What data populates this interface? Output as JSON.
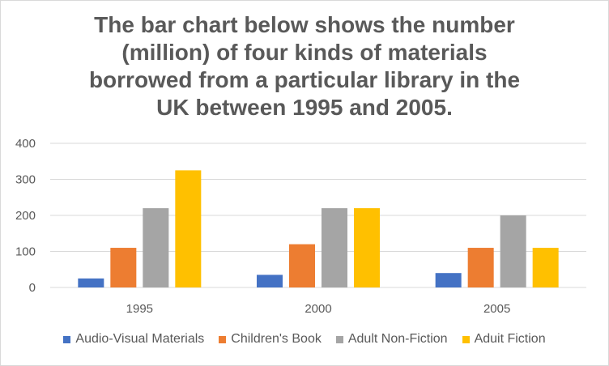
{
  "chart_data": {
    "type": "bar",
    "title_lines": [
      "The bar chart below shows the number",
      "(million) of four kinds of materials",
      "borrowed from a particular library in the",
      "UK between 1995 and 2005."
    ],
    "categories": [
      "1995",
      "2000",
      "2005"
    ],
    "series": [
      {
        "name": "Audio-Visual Materials",
        "color": "#4472C4",
        "values": [
          25,
          35,
          40
        ]
      },
      {
        "name": "Children's Book",
        "color": "#ED7D31",
        "values": [
          110,
          120,
          110
        ]
      },
      {
        "name": "Adult Non-Fiction",
        "color": "#A5A5A5",
        "values": [
          220,
          220,
          200
        ]
      },
      {
        "name": "Aduit Fiction",
        "color": "#FFC000",
        "values": [
          325,
          220,
          110
        ]
      }
    ],
    "y_ticks": [
      "0",
      "100",
      "200",
      "300",
      "400"
    ],
    "ylim": [
      0,
      400
    ],
    "grid": true,
    "legend_position": "bottom"
  }
}
